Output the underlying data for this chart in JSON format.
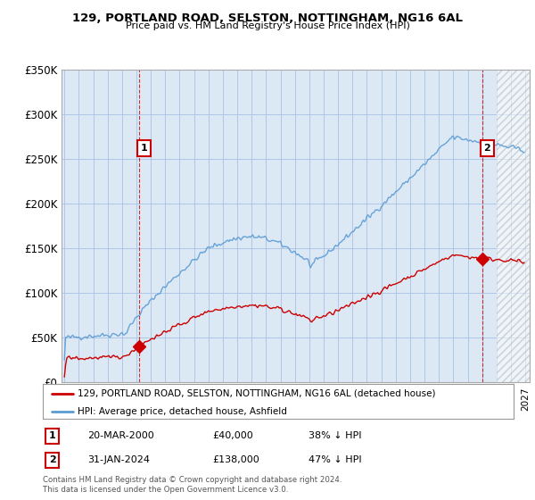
{
  "title": "129, PORTLAND ROAD, SELSTON, NOTTINGHAM, NG16 6AL",
  "subtitle": "Price paid vs. HM Land Registry's House Price Index (HPI)",
  "legend_line1": "129, PORTLAND ROAD, SELSTON, NOTTINGHAM, NG16 6AL (detached house)",
  "legend_line2": "HPI: Average price, detached house, Ashfield",
  "footnote": "Contains HM Land Registry data © Crown copyright and database right 2024.\nThis data is licensed under the Open Government Licence v3.0.",
  "transaction1_date": "20-MAR-2000",
  "transaction1_price": "£40,000",
  "transaction1_hpi": "38% ↓ HPI",
  "transaction2_date": "31-JAN-2024",
  "transaction2_price": "£138,000",
  "transaction2_hpi": "47% ↓ HPI",
  "hpi_color": "#5b9bd5",
  "price_color": "#cc0000",
  "dashed_line_color": "#cc0000",
  "marker_color": "#cc0000",
  "ylim": [
    0,
    350000
  ],
  "yticks": [
    0,
    50000,
    100000,
    150000,
    200000,
    250000,
    300000,
    350000
  ],
  "ytick_labels": [
    "£0",
    "£50K",
    "£100K",
    "£150K",
    "£200K",
    "£250K",
    "£300K",
    "£350K"
  ],
  "xstart_year": 1995,
  "xend_year": 2027,
  "grid_color": "#aec6e8",
  "bg_color": "#dce9f5",
  "plot_bg": "#dce9f5",
  "background_color": "#ffffff"
}
